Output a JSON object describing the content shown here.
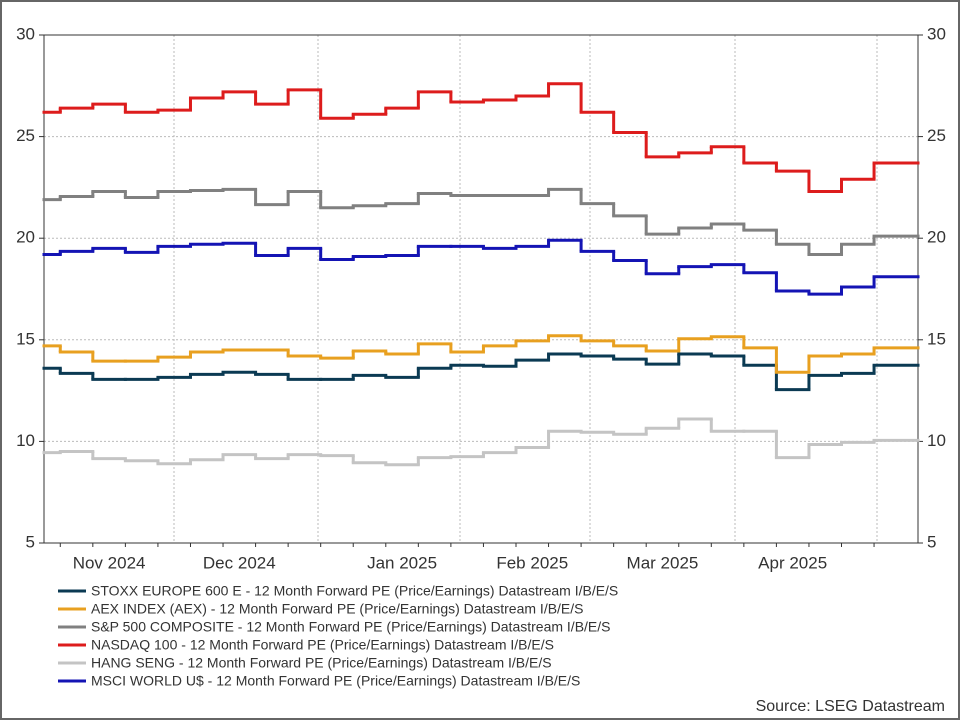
{
  "chart_data": {
    "type": "line",
    "step": true,
    "categories": [
      null,
      null,
      "Nov 2024",
      null,
      null,
      null,
      "Dec 2024",
      null,
      null,
      null,
      null,
      "Jan 2025",
      null,
      null,
      null,
      "Feb 2025",
      null,
      null,
      null,
      "Mar 2025",
      null,
      null,
      null,
      "Apr 2025",
      null,
      null,
      null
    ],
    "series": [
      {
        "name": "STOXX EUROPE 600 E - 12 Month Forward PE (Price/Earnings) Datastream I/B/E/S",
        "color": "#0b3a53",
        "values": [
          13.6,
          13.35,
          13.05,
          13.05,
          13.15,
          13.3,
          13.4,
          13.3,
          13.05,
          13.05,
          13.25,
          13.15,
          13.6,
          13.75,
          13.7,
          14.0,
          14.3,
          14.2,
          14.05,
          13.8,
          14.3,
          14.2,
          13.75,
          12.55,
          13.25,
          13.35,
          13.75
        ]
      },
      {
        "name": "AEX INDEX (AEX) - 12 Month Forward PE (Price/Earnings) Datastream I/B/E/S",
        "color": "#e8a020",
        "values": [
          14.7,
          14.4,
          13.95,
          13.95,
          14.15,
          14.4,
          14.5,
          14.5,
          14.2,
          14.1,
          14.45,
          14.3,
          14.8,
          14.4,
          14.7,
          14.95,
          15.2,
          14.95,
          14.7,
          14.45,
          15.05,
          15.15,
          14.6,
          13.4,
          14.2,
          14.3,
          14.6
        ]
      },
      {
        "name": "S&P 500 COMPOSITE - 12 Month Forward PE (Price/Earnings) Datastream I/B/E/S",
        "color": "#808080",
        "values": [
          21.9,
          22.05,
          22.3,
          22.0,
          22.3,
          22.35,
          22.4,
          21.65,
          22.3,
          21.5,
          21.6,
          21.7,
          22.2,
          22.1,
          22.1,
          22.1,
          22.4,
          21.7,
          21.1,
          20.2,
          20.5,
          20.7,
          20.4,
          19.7,
          19.2,
          19.7,
          20.1
        ]
      },
      {
        "name": "NASDAQ 100 - 12 Month Forward PE (Price/Earnings) Datastream I/B/E/S",
        "color": "#dd1c1c",
        "values": [
          26.2,
          26.4,
          26.6,
          26.2,
          26.3,
          26.9,
          27.2,
          26.6,
          27.3,
          25.9,
          26.1,
          26.4,
          27.2,
          26.7,
          26.8,
          27.0,
          27.6,
          26.2,
          25.2,
          24.0,
          24.2,
          24.5,
          23.7,
          23.3,
          22.3,
          22.9,
          23.7
        ]
      },
      {
        "name": "HANG SENG - 12 Month Forward PE (Price/Earnings) Datastream I/B/E/S",
        "color": "#c4c4c4",
        "values": [
          9.45,
          9.5,
          9.15,
          9.05,
          8.9,
          9.1,
          9.35,
          9.15,
          9.35,
          9.3,
          8.95,
          8.85,
          9.2,
          9.25,
          9.45,
          9.7,
          10.5,
          10.45,
          10.35,
          10.65,
          11.1,
          10.5,
          10.5,
          9.2,
          9.85,
          9.95,
          10.05
        ]
      },
      {
        "name": "MSCI WORLD U$ - 12 Month Forward PE (Price/Earnings) Datastream I/B/E/S",
        "color": "#1414b4",
        "values": [
          19.2,
          19.35,
          19.5,
          19.3,
          19.6,
          19.7,
          19.75,
          19.15,
          19.5,
          18.95,
          19.1,
          19.15,
          19.6,
          19.6,
          19.5,
          19.6,
          19.9,
          19.35,
          18.9,
          18.25,
          18.6,
          18.7,
          18.3,
          17.4,
          17.25,
          17.6,
          18.1
        ]
      }
    ],
    "ylim": [
      5,
      30
    ],
    "yticks": [
      5,
      10,
      15,
      20,
      25,
      30
    ],
    "grid": true,
    "source": "Source: LSEG Datastream"
  }
}
